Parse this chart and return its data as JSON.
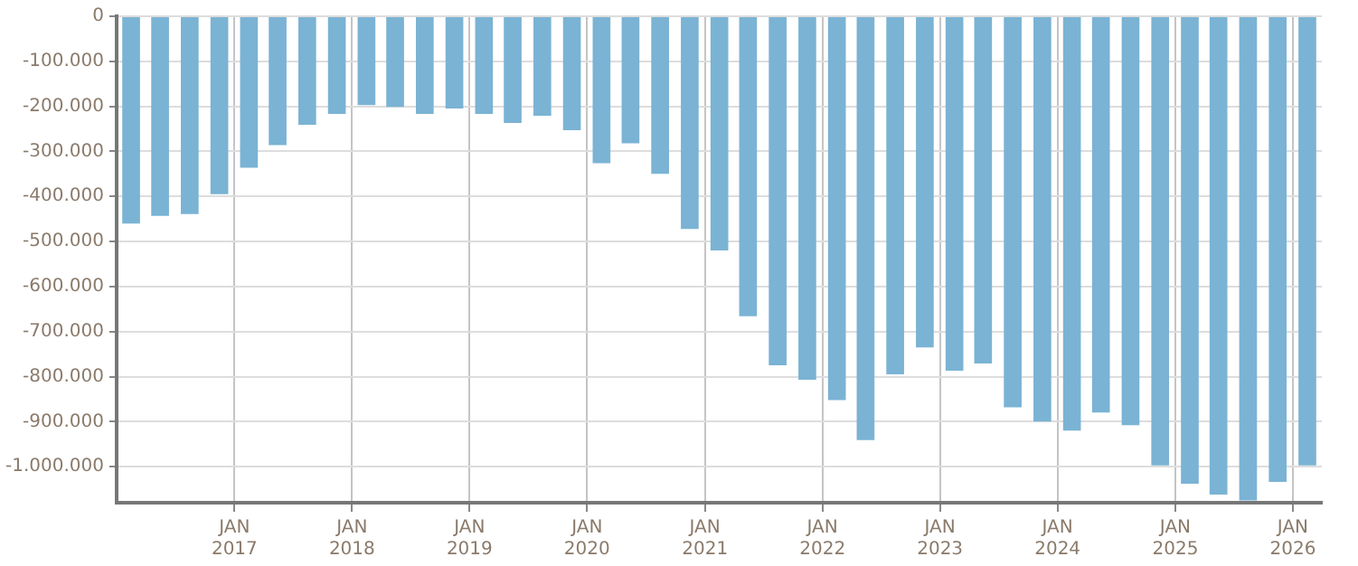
{
  "chart_data": {
    "type": "bar",
    "x": [
      "2016-02-15",
      "2016-05-15",
      "2016-08-15",
      "2016-11-15",
      "2017-02-15",
      "2017-05-15",
      "2017-08-15",
      "2017-11-15",
      "2018-02-15",
      "2018-05-15",
      "2018-08-15",
      "2018-11-15",
      "2019-02-15",
      "2019-05-15",
      "2019-08-15",
      "2019-11-15",
      "2020-02-15",
      "2020-05-15",
      "2020-08-15",
      "2020-11-15",
      "2021-02-15",
      "2021-05-15",
      "2021-08-15",
      "2021-11-15",
      "2022-02-15",
      "2022-05-15",
      "2022-08-15",
      "2022-11-15",
      "2023-02-15",
      "2023-05-15",
      "2023-08-15",
      "2023-11-15",
      "2024-02-15",
      "2024-05-15",
      "2024-08-15",
      "2024-11-15",
      "2025-02-15",
      "2025-05-15",
      "2025-08-15",
      "2025-11-15",
      "2026-02-15"
    ],
    "values": [
      -460000,
      -443000,
      -439000,
      -395000,
      -336000,
      -286000,
      -241000,
      -217000,
      -197000,
      -201000,
      -217000,
      -205000,
      -217000,
      -237000,
      -221000,
      -253000,
      -326000,
      -282000,
      -350000,
      -472000,
      -520000,
      -666000,
      -775000,
      -807000,
      -852000,
      -941000,
      -795000,
      -735000,
      -787000,
      -771000,
      -868000,
      -900000,
      -920000,
      -880000,
      -908000,
      -997000,
      -1038000,
      -1062000,
      -1075000,
      -1034000,
      -997000
    ],
    "color": "#7ab3d4",
    "ylim": [
      -1080000,
      0
    ],
    "yticks": [
      0,
      {
        "value": -100000,
        "label": "-100.000"
      },
      {
        "value": -200000,
        "label": "-200.000"
      },
      {
        "value": -300000,
        "label": "-300.000"
      },
      {
        "value": -400000,
        "label": "-400.000"
      },
      {
        "value": -500000,
        "label": "-500.000"
      },
      {
        "value": -600000,
        "label": "-600.000"
      },
      {
        "value": -700000,
        "label": "-700.000"
      },
      {
        "value": -800000,
        "label": "-800.000"
      },
      {
        "value": -900000,
        "label": "-900.000"
      },
      {
        "value": -1000000,
        "label": "-1.000.000"
      }
    ],
    "xlim": [
      "2016-01-01",
      "2026-04-01"
    ],
    "xticks": [
      {
        "value": "2017-01-01",
        "label": "JAN 2017"
      },
      {
        "value": "2018-01-01",
        "label": "JAN 2018"
      },
      {
        "value": "2019-01-01",
        "label": "JAN 2019"
      },
      {
        "value": "2020-01-01",
        "label": "JAN 2020"
      },
      {
        "value": "2021-01-01",
        "label": "JAN 2021"
      },
      {
        "value": "2022-01-01",
        "label": "JAN 2022"
      },
      {
        "value": "2023-01-01",
        "label": "JAN 2023"
      },
      {
        "value": "2024-01-01",
        "label": "JAN 2024"
      },
      {
        "value": "2025-01-01",
        "label": "JAN 2025"
      },
      {
        "value": "2026-01-01",
        "label": "JAN 2026"
      }
    ],
    "grid": true
  }
}
